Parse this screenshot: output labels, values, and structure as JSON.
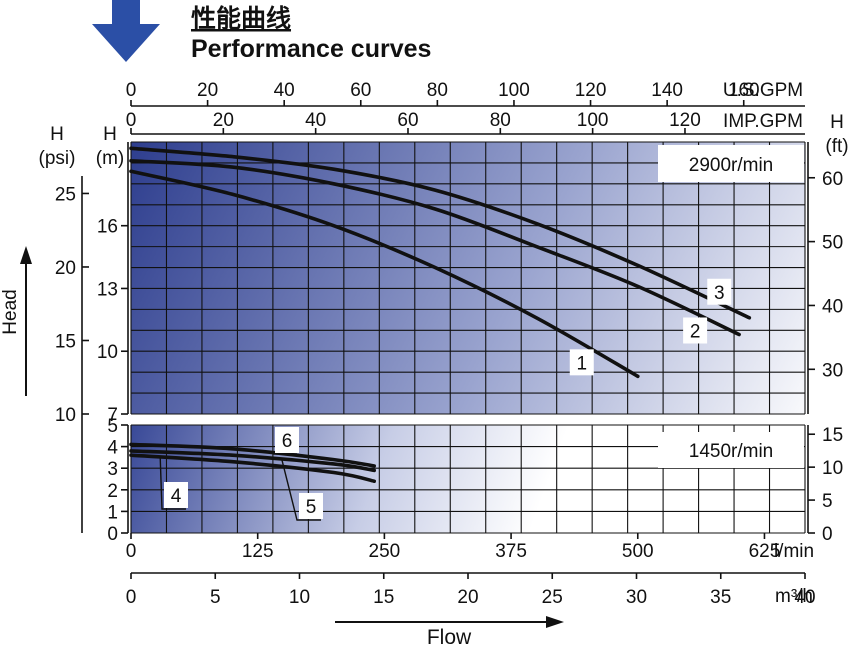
{
  "header": {
    "title_cn": "性能曲线",
    "title_en": "Performance curves",
    "arrow_color": "#2b4fa6"
  },
  "chart_data": {
    "type": "line",
    "colors": {
      "panel_dark": "#2f3f8f",
      "panel_light": "#ffffff",
      "grid": "#111111",
      "curves": "#111111"
    },
    "x_axes": {
      "lpm": {
        "unit_label": "l/min",
        "ticks": [
          0,
          125,
          250,
          375,
          500,
          625
        ],
        "range": [
          0,
          665
        ]
      },
      "m3h": {
        "unit_label": "m³/h",
        "ticks": [
          0,
          5,
          10,
          15,
          20,
          25,
          30,
          35,
          40
        ],
        "range": [
          0,
          40
        ]
      },
      "usgpm": {
        "unit_label": "U.S.GPM",
        "ticks": [
          0,
          20,
          40,
          60,
          80,
          100,
          120,
          140,
          160
        ],
        "range": [
          0,
          176
        ]
      },
      "impgpm": {
        "unit_label": "IMP.GPM",
        "ticks": [
          0,
          20,
          40,
          60,
          80,
          100,
          120
        ],
        "range": [
          0,
          146
        ]
      }
    },
    "xlabel": "Flow",
    "ylabel": "Head",
    "panels": [
      {
        "speed_label": "2900r/min",
        "y_m": {
          "title": "H\n(m)",
          "ticks": [
            7,
            10,
            13,
            16
          ],
          "range": [
            7,
            20
          ]
        },
        "y_psi": {
          "title": "H\n(psi)",
          "ticks": [
            10,
            15,
            20,
            25
          ],
          "range": [
            10,
            28.5
          ]
        },
        "y_ft": {
          "title": "H\n(ft)",
          "ticks": [
            30,
            40,
            50,
            60
          ],
          "range": [
            23,
            65.6
          ]
        },
        "series": [
          {
            "name": "1",
            "x_lpm": [
              0,
              100,
              200,
              300,
              400,
              500
            ],
            "y_m": [
              18.6,
              17.5,
              16.0,
              14.0,
              11.6,
              8.8
            ]
          },
          {
            "name": "2",
            "x_lpm": [
              0,
              100,
              200,
              300,
              400,
              500,
              600
            ],
            "y_m": [
              19.1,
              18.8,
              18.0,
              16.8,
              15.0,
              13.1,
              10.8
            ]
          },
          {
            "name": "3",
            "x_lpm": [
              0,
              100,
              200,
              300,
              400,
              500,
              610
            ],
            "y_m": [
              19.7,
              19.3,
              18.7,
              17.7,
              16.1,
              14.1,
              11.6
            ]
          }
        ]
      },
      {
        "speed_label": "1450r/min",
        "y_m": {
          "ticks": [
            0,
            1,
            2,
            3,
            4,
            5
          ],
          "range": [
            0,
            5
          ]
        },
        "y_ft": {
          "ticks": [
            0,
            5,
            10,
            15
          ],
          "range": [
            0,
            16.4
          ]
        },
        "series": [
          {
            "name": "4",
            "x_lpm": [
              0,
              100,
              200,
              240
            ],
            "y_m": [
              3.6,
              3.3,
              2.8,
              2.4
            ]
          },
          {
            "name": "5",
            "x_lpm": [
              0,
              100,
              200,
              240
            ],
            "y_m": [
              3.8,
              3.6,
              3.2,
              2.9
            ]
          },
          {
            "name": "6",
            "x_lpm": [
              0,
              100,
              200,
              240
            ],
            "y_m": [
              4.1,
              3.9,
              3.4,
              3.1
            ]
          }
        ]
      }
    ]
  }
}
